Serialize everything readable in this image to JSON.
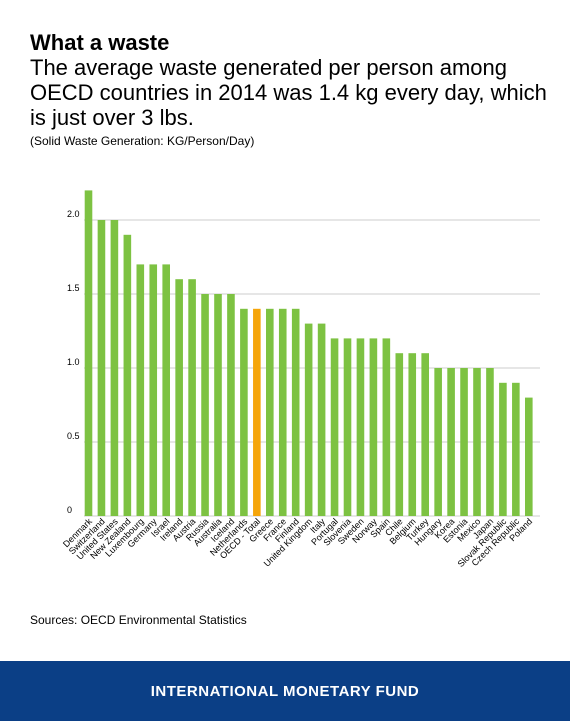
{
  "header": {
    "title": "What a waste",
    "subtitle": "The average waste generated per person among OECD countries in 2014 was 1.4 kg every day, which is just over 3 lbs.",
    "unit_note": "(Solid Waste Generation: KG/Person/Day)"
  },
  "source": "Sources: OECD Environmental Statistics",
  "footer": {
    "org": "INTERNATIONAL MONETARY FUND"
  },
  "colors": {
    "bar": "#7dc242",
    "highlight": "#f5a50a",
    "footer_bg": "#0b3f86",
    "grid": "#cccccc"
  },
  "chart_data": {
    "type": "bar",
    "categories": [
      "Denmark",
      "Switzerland",
      "United States",
      "New Zealand",
      "Luxembourg",
      "Germany",
      "Israel",
      "Ireland",
      "Austria",
      "Russia",
      "Australia",
      "Iceland",
      "Netherlands",
      "OECD - Total",
      "Greece",
      "France",
      "Finland",
      "United Kingdom",
      "Italy",
      "Portugal",
      "Slovenia",
      "Sweden",
      "Norway",
      "Spain",
      "Chile",
      "Belgium",
      "Turkey",
      "Hungary",
      "Korea",
      "Estonia",
      "Mexico",
      "Japan",
      "Slovak Republic",
      "Czech Republic",
      "Poland"
    ],
    "values": [
      2.2,
      2.0,
      2.0,
      1.9,
      1.7,
      1.7,
      1.7,
      1.6,
      1.6,
      1.5,
      1.5,
      1.5,
      1.4,
      1.4,
      1.4,
      1.4,
      1.4,
      1.3,
      1.3,
      1.2,
      1.2,
      1.2,
      1.2,
      1.2,
      1.1,
      1.1,
      1.1,
      1.0,
      1.0,
      1.0,
      1.0,
      1.0,
      0.9,
      0.9,
      0.8
    ],
    "highlight_category": "OECD - Total",
    "yticks": [
      "0",
      "0.5",
      "1.0",
      "1.5",
      "2.0"
    ],
    "ylim": [
      0,
      2.2
    ],
    "grid": true
  }
}
